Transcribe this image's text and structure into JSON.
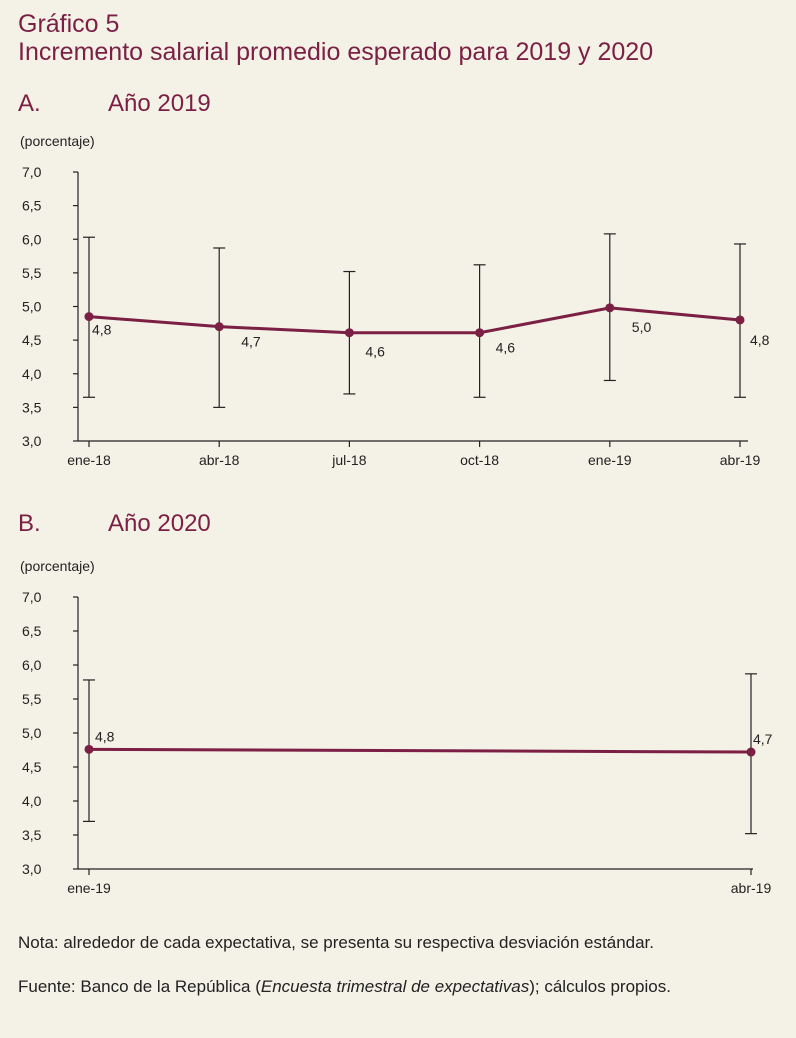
{
  "figure": {
    "label": "Gráfico 5",
    "title": "Incremento salarial promedio esperado para 2019 y 2020"
  },
  "colors": {
    "accent": "#7b1f45",
    "background": "#f4f1e6",
    "axis": "#222222"
  },
  "chart_data": [
    {
      "type": "line",
      "panel_letter": "A.",
      "panel_title": "Año 2019",
      "ylabel": "(porcentaje)",
      "xlabel": "",
      "ylim": [
        3.0,
        7.0
      ],
      "yticks": [
        "7,0",
        "6,5",
        "6,0",
        "5,5",
        "5,0",
        "4,5",
        "4,0",
        "3,5",
        "3,0"
      ],
      "categories": [
        "ene-18",
        "abr-18",
        "jul-18",
        "oct-18",
        "ene-19",
        "abr-19"
      ],
      "values": [
        4.85,
        4.7,
        4.61,
        4.61,
        4.98,
        4.8
      ],
      "data_labels": [
        "4,8",
        "4,7",
        "4,6",
        "4,6",
        "5,0",
        "4,8"
      ],
      "error_low": [
        3.65,
        3.5,
        3.7,
        3.65,
        3.9,
        3.65
      ],
      "error_high": [
        6.03,
        5.87,
        5.52,
        5.62,
        6.08,
        5.93
      ],
      "grid": false,
      "legend": "none"
    },
    {
      "type": "line",
      "panel_letter": "B.",
      "panel_title": "Año 2020",
      "ylabel": "(porcentaje)",
      "xlabel": "",
      "ylim": [
        3.0,
        7.0
      ],
      "yticks": [
        "7,0",
        "6,5",
        "6,0",
        "5,5",
        "5,0",
        "4,5",
        "4,0",
        "3,5",
        "3,0"
      ],
      "categories": [
        "ene-19",
        "abr-19"
      ],
      "values": [
        4.76,
        4.72
      ],
      "data_labels": [
        "4,8",
        "4,7"
      ],
      "error_low": [
        3.7,
        3.52
      ],
      "error_high": [
        5.78,
        5.87
      ],
      "grid": false,
      "legend": "none"
    }
  ],
  "notes": {
    "nota": "Nota: alrededor de cada expectativa, se presenta su respectiva desviación estándar.",
    "fuente_prefix": "Fuente: Banco de la República (",
    "fuente_italic": "Encuesta trimestral de expectativas",
    "fuente_suffix": "); cálculos propios."
  }
}
